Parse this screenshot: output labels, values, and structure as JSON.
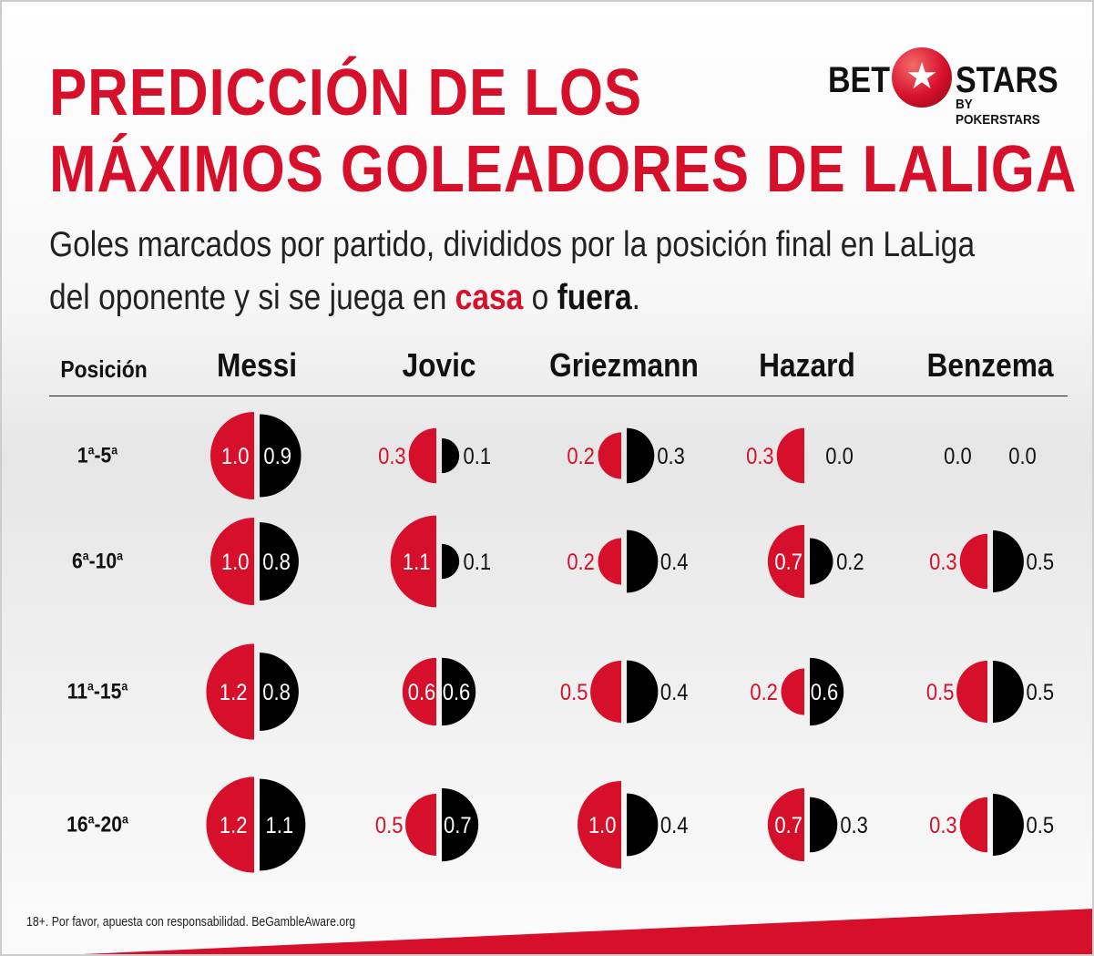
{
  "title_line1": "PREDICCIÓN DE LOS",
  "title_line2": "MÁXIMOS GOLEADORES DE LALIGA",
  "subtitle_part1": "Goles marcados por partido, divididos por la posición final en LaLiga",
  "subtitle_part2": "del oponente y si se juega en ",
  "subtitle_casa": "casa",
  "subtitle_o": " o ",
  "subtitle_fuera": "fuera",
  "subtitle_end": ".",
  "logo": {
    "bet": "BET",
    "stars": "STARS",
    "by": "BY POKERSTARS"
  },
  "footer": "18+. Por favor, apuesta con responsabilidad. BeGambleAware.org",
  "colors": {
    "home": "#d6102a",
    "away": "#000000",
    "accent": "#d6102a"
  },
  "chart_data": {
    "type": "split-bubble-matrix",
    "row_header": "Posición",
    "players": [
      "Messi",
      "Jovic",
      "Griezmann",
      "Hazard",
      "Benzema"
    ],
    "rows": [
      {
        "base": "1",
        "sup": "a",
        "sep": "-",
        "base2": "5",
        "sup2": "a"
      },
      {
        "base": "6",
        "sup": "a",
        "sep": "-",
        "base2": "10",
        "sup2": "a"
      },
      {
        "base": "11",
        "sup": "a",
        "sep": "-",
        "base2": "15",
        "sup2": "a"
      },
      {
        "base": "16",
        "sup": "a",
        "sep": "-",
        "base2": "20",
        "sup2": "a"
      }
    ],
    "series": [
      {
        "name": "casa",
        "values": [
          [
            1.0,
            0.3,
            0.2,
            0.3,
            0.0
          ],
          [
            1.0,
            1.1,
            0.2,
            0.7,
            0.3
          ],
          [
            1.2,
            0.6,
            0.5,
            0.2,
            0.5
          ],
          [
            1.2,
            0.5,
            1.0,
            0.7,
            0.3
          ]
        ]
      },
      {
        "name": "fuera",
        "values": [
          [
            0.9,
            0.1,
            0.3,
            0.0,
            0.0
          ],
          [
            0.8,
            0.1,
            0.4,
            0.2,
            0.5
          ],
          [
            0.8,
            0.6,
            0.4,
            0.6,
            0.5
          ],
          [
            1.1,
            0.7,
            0.4,
            0.3,
            0.5
          ]
        ]
      }
    ]
  }
}
